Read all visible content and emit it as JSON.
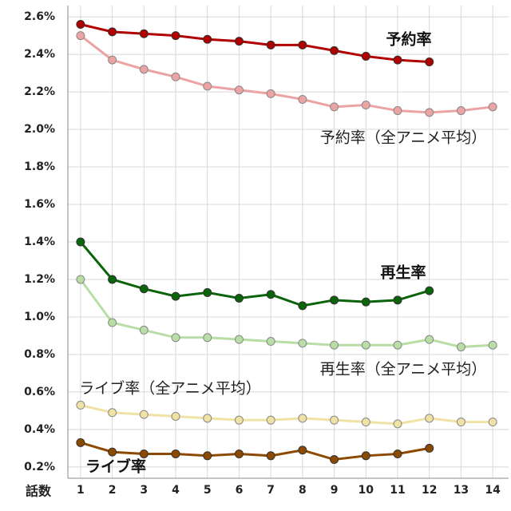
{
  "chart_data": {
    "type": "line",
    "x_label": "話数",
    "x": [
      1,
      2,
      3,
      4,
      5,
      6,
      7,
      8,
      9,
      10,
      11,
      12,
      13,
      14
    ],
    "xlim": [
      0.6,
      14.5
    ],
    "xticks": [
      1,
      2,
      3,
      4,
      5,
      6,
      7,
      8,
      9,
      10,
      11,
      12,
      13,
      14
    ],
    "ylim": [
      0.14,
      2.66
    ],
    "yticks": [
      {
        "value": 0.2,
        "label": "0.2%"
      },
      {
        "value": 0.4,
        "label": "0.4%"
      },
      {
        "value": 0.6,
        "label": "0.6%"
      },
      {
        "value": 0.8,
        "label": "0.8%"
      },
      {
        "value": 1.0,
        "label": "1.0%"
      },
      {
        "value": 1.2,
        "label": "1.2%"
      },
      {
        "value": 1.4,
        "label": "1.4%"
      },
      {
        "value": 1.6,
        "label": "1.6%"
      },
      {
        "value": 1.8,
        "label": "1.8%"
      },
      {
        "value": 2.0,
        "label": "2.0%"
      },
      {
        "value": 2.2,
        "label": "2.2%"
      },
      {
        "value": 2.4,
        "label": "2.4%"
      },
      {
        "value": 2.6,
        "label": "2.6%"
      }
    ],
    "grid": true,
    "series": [
      {
        "name": "予約率（全アニメ平均）",
        "color": "#eba3a3",
        "values": [
          2.5,
          2.37,
          2.32,
          2.28,
          2.23,
          2.21,
          2.19,
          2.16,
          2.12,
          2.13,
          2.1,
          2.09,
          2.1,
          2.12
        ]
      },
      {
        "name": "予約率",
        "color": "#b00000",
        "values": [
          2.56,
          2.52,
          2.51,
          2.5,
          2.48,
          2.47,
          2.45,
          2.45,
          2.42,
          2.39,
          2.37,
          2.36,
          null,
          null
        ]
      },
      {
        "name": "再生率（全アニメ平均）",
        "color": "#b8dea5",
        "values": [
          1.2,
          0.97,
          0.93,
          0.89,
          0.89,
          0.88,
          0.87,
          0.86,
          0.85,
          0.85,
          0.85,
          0.88,
          0.84,
          0.85
        ]
      },
      {
        "name": "再生率",
        "color": "#0a640a",
        "values": [
          1.4,
          1.2,
          1.15,
          1.11,
          1.13,
          1.1,
          1.12,
          1.06,
          1.09,
          1.08,
          1.09,
          1.14,
          null,
          null
        ]
      },
      {
        "name": "ライブ率（全アニメ平均）",
        "color": "#efe2a4",
        "values": [
          0.53,
          0.49,
          0.48,
          0.47,
          0.46,
          0.45,
          0.45,
          0.46,
          0.45,
          0.44,
          0.43,
          0.46,
          0.44,
          0.44
        ]
      },
      {
        "name": "ライブ率",
        "color": "#8b4a00",
        "values": [
          0.33,
          0.28,
          0.27,
          0.27,
          0.26,
          0.27,
          0.26,
          0.29,
          0.24,
          0.26,
          0.27,
          0.3,
          null,
          null
        ]
      }
    ]
  }
}
